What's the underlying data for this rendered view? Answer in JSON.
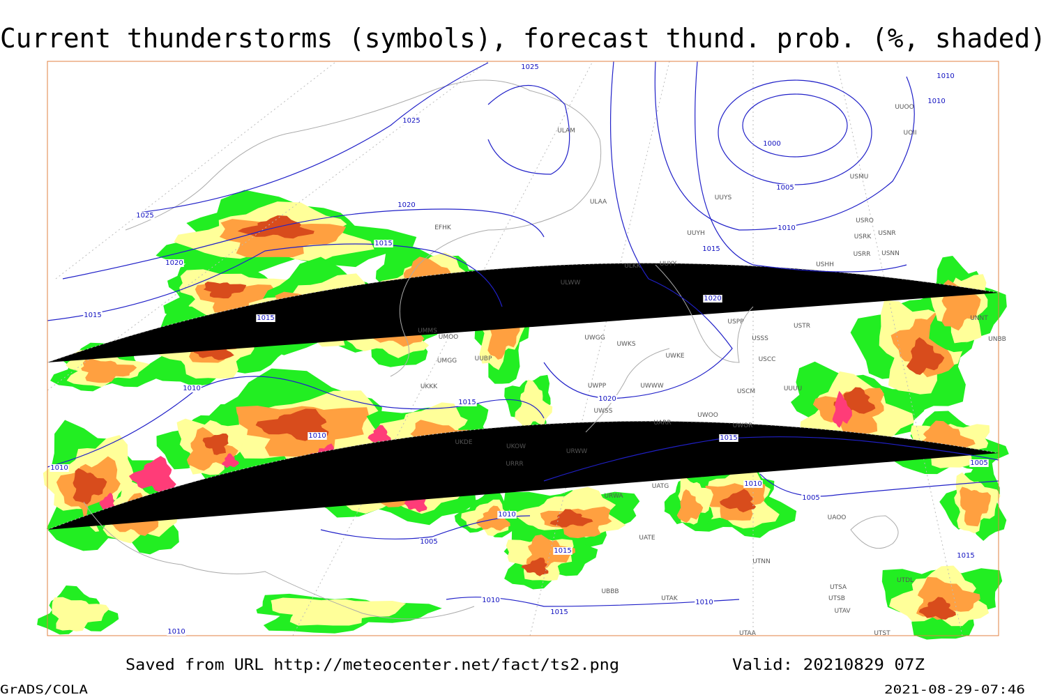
{
  "map": {
    "title": "Current thunderstorms (symbols), forecast thund. prob. (%, shaded)",
    "source": "Saved from URL http://meteocenter.net/fact/ts2.png",
    "valid": "Valid: 20210829 07Z",
    "software": "GrADS/COLA",
    "timestamp": "2021-08-29-07:46",
    "isobar_labels": [
      "1025",
      "1025",
      "1025",
      "1020",
      "1020",
      "1015",
      "1015",
      "1015",
      "1010",
      "1015",
      "1010",
      "1010",
      "1010",
      "1005",
      "1015",
      "1010",
      "1015",
      "1010",
      "1020",
      "1020",
      "1015",
      "1010",
      "1005",
      "1000",
      "1010",
      "1010",
      "1015",
      "1010",
      "1005",
      "1005",
      "1015",
      "1010"
    ],
    "stations": [
      "ULAM",
      "ULAA",
      "UUYS",
      "UUYH",
      "ULKK",
      "UUYY",
      "ULWW",
      "USPP",
      "USTR",
      "USSS",
      "UWGG",
      "UWKS",
      "UWKE",
      "USCC",
      "UWPP",
      "UWWW",
      "USCM",
      "UUUU",
      "UWSS",
      "UARR",
      "UWOO",
      "UWOR",
      "URWW",
      "UKOW",
      "UATG",
      "URWA",
      "UUOO",
      "UOII",
      "USMU",
      "USRO",
      "USRK",
      "USNR",
      "USRR",
      "USNN",
      "USHH",
      "UNNT",
      "UNBB",
      "EFHK",
      "UMMS",
      "UMOO",
      "UUBP",
      "UMGG",
      "UKKK",
      "UKDE",
      "URRR",
      "UTNN",
      "UAOO",
      "UTAK",
      "UBBB",
      "UTAA",
      "UTSA",
      "UTSB",
      "UTAV",
      "UTDL",
      "UTST",
      "UATE"
    ]
  }
}
